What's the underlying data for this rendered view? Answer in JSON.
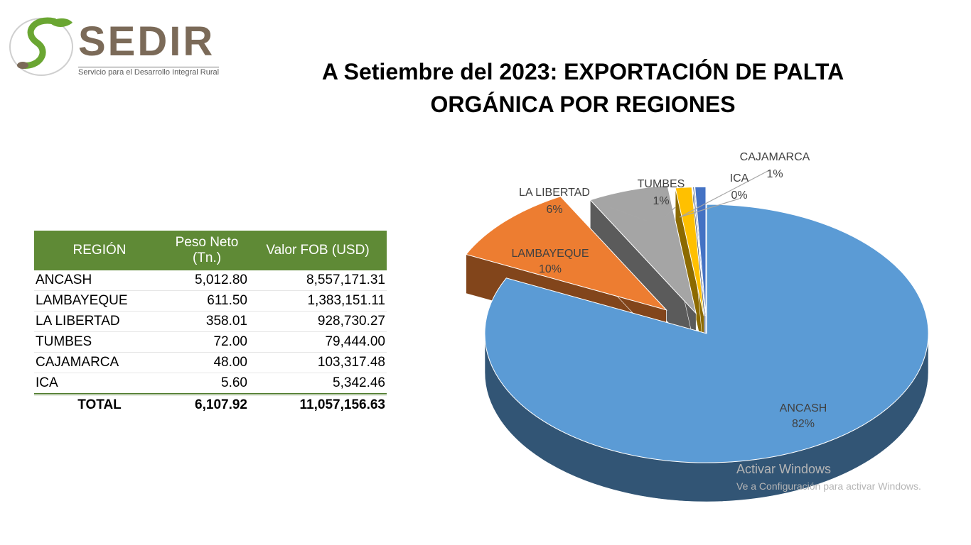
{
  "logo": {
    "name": "SEDIR",
    "tagline": "Servicio para el Desarrollo Integral Rural"
  },
  "title": "A Setiembre del 2023: EXPORTACIÓN DE PALTA ORGÁNICA POR REGIONES",
  "table": {
    "headers": {
      "region": "REGIÓN",
      "peso_line1": "Peso Neto",
      "peso_line2": "(Tn.)",
      "fob": "Valor FOB (USD)"
    },
    "rows": [
      {
        "region": "ANCASH",
        "peso": "5,012.80",
        "fob": "8,557,171.31"
      },
      {
        "region": "LAMBAYEQUE",
        "peso": "611.50",
        "fob": "1,383,151.11"
      },
      {
        "region": "LA LIBERTAD",
        "peso": "358.01",
        "fob": "928,730.27"
      },
      {
        "region": "TUMBES",
        "peso": "72.00",
        "fob": "79,444.00"
      },
      {
        "region": "CAJAMARCA",
        "peso": "48.00",
        "fob": "103,317.48"
      },
      {
        "region": "ICA",
        "peso": "5.60",
        "fob": "5,342.46"
      }
    ],
    "total": {
      "label": "TOTAL",
      "peso": "6,107.92",
      "fob": "11,057,156.63"
    }
  },
  "chart_data": {
    "type": "pie",
    "title": "",
    "slices": [
      {
        "label": "ANCASH",
        "value": 5012.8,
        "pct_label": "82%",
        "color": "#5b9bd5"
      },
      {
        "label": "LAMBAYEQUE",
        "value": 611.5,
        "pct_label": "10%",
        "color": "#ed7d31"
      },
      {
        "label": "LA LIBERTAD",
        "value": 358.01,
        "pct_label": "6%",
        "color": "#a5a5a5"
      },
      {
        "label": "TUMBES",
        "value": 72.0,
        "pct_label": "1%",
        "color": "#ffc000"
      },
      {
        "label": "ICA",
        "value": 5.6,
        "pct_label": "0%",
        "color": "#264478"
      },
      {
        "label": "CAJAMARCA",
        "value": 48.0,
        "pct_label": "1%",
        "color": "#4472c4"
      }
    ],
    "style": "3d-exploded"
  },
  "watermark": {
    "line1": "Activar Windows",
    "line2": "Ve a Configuración para activar Windows."
  },
  "colors": {
    "header_green": "#5f8a36",
    "logo_brown": "#7b6a58",
    "logo_green": "#6aa632"
  }
}
